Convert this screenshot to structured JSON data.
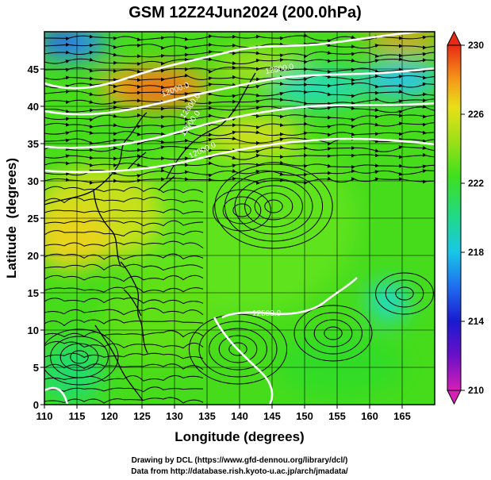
{
  "title": "GSM 12Z24Jun2024 (200.0hPa)",
  "xlabel": "Longitude (degrees)",
  "ylabel": "Latitude  (degrees)",
  "credits": [
    "Drawing by DCL (https://www.gfd-dennou.org/library/dcl/)",
    "Data from http://database.rish.kyoto-u.ac.jp/arch/jmadata/"
  ],
  "map": {
    "lon_range": [
      110,
      170
    ],
    "lat_range": [
      0,
      50
    ],
    "x_ticks": [
      "110",
      "115",
      "120",
      "125",
      "130",
      "135",
      "140",
      "145",
      "150",
      "155",
      "160",
      "165"
    ],
    "y_ticks": [
      "0",
      "5",
      "10",
      "15",
      "20",
      "25",
      "30",
      "35",
      "40",
      "45"
    ],
    "grid": true
  },
  "colorbar": {
    "min": 210,
    "max": 230,
    "ticks": [
      "210",
      "214",
      "218",
      "222",
      "226",
      "230"
    ],
    "extend": "both"
  },
  "contour_labels": [
    "12000.0",
    "12000.0",
    "12000.0",
    "12000.0",
    "12500.0",
    "12500.0"
  ],
  "colors": {
    "frame": "#000000",
    "contour": "#ffffff",
    "coast": "#000000",
    "background": "#ffffff"
  }
}
